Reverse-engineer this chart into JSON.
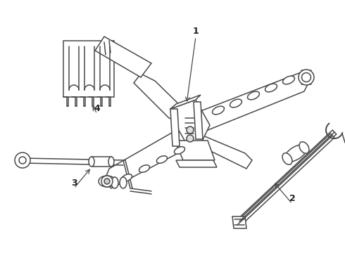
{
  "background_color": "#ffffff",
  "line_color": "#4a4a4a",
  "line_width": 1.1,
  "label_color": "#222222",
  "label_fontsize": 9,
  "fig_width": 4.9,
  "fig_height": 3.6,
  "dpi": 100
}
